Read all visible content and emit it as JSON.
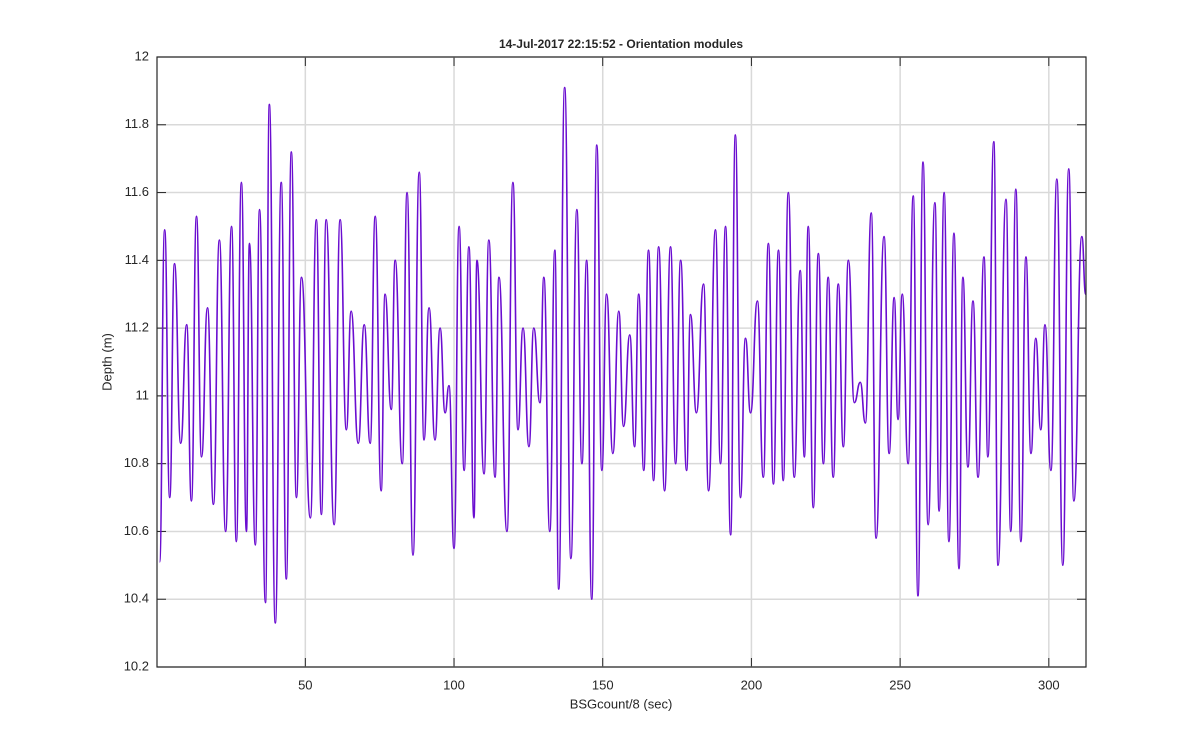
{
  "chart_data": {
    "type": "line",
    "title": "14-Jul-2017 22:15:52 - Orientation modules",
    "x_label": "BSGcount/8 (sec)",
    "y_label": "Depth (m)",
    "xlim": [
      0.125,
      312.5
    ],
    "xticks": [
      50,
      100,
      150,
      200,
      250,
      300
    ],
    "ylim": [
      10.2,
      12
    ],
    "yticks": [
      10.2,
      10.4,
      10.6,
      10.8,
      11,
      11.2,
      11.4,
      11.6,
      11.8,
      12
    ],
    "grid": true,
    "series": [
      {
        "color": "#6a0dd0",
        "x": [
          1.0,
          2.7,
          4.4,
          6.0,
          8.1,
          10.1,
          11.7,
          13.4,
          15.1,
          17.1,
          19.1,
          21.1,
          23.2,
          25.2,
          26.8,
          28.5,
          30.2,
          31.2,
          33.2,
          34.6,
          36.6,
          37.9,
          39.9,
          41.9,
          43.6,
          45.3,
          47.0,
          48.7,
          51.7,
          53.7,
          55.4,
          57.0,
          59.7,
          61.7,
          63.8,
          65.4,
          67.8,
          69.8,
          71.8,
          73.5,
          75.5,
          76.8,
          78.9,
          80.2,
          82.6,
          84.2,
          86.2,
          88.3,
          89.9,
          91.6,
          93.6,
          95.3,
          97.0,
          98.3,
          100.0,
          101.7,
          103.4,
          105.0,
          106.7,
          107.7,
          110.1,
          111.7,
          113.8,
          115.1,
          117.8,
          119.8,
          121.5,
          123.2,
          125.2,
          126.8,
          128.9,
          130.2,
          132.2,
          133.9,
          135.2,
          137.2,
          139.3,
          141.3,
          143.0,
          144.6,
          146.3,
          148.0,
          149.7,
          151.3,
          153.4,
          155.4,
          157.0,
          159.1,
          160.7,
          162.1,
          163.8,
          165.4,
          167.1,
          168.8,
          170.8,
          172.8,
          174.5,
          176.2,
          178.2,
          179.5,
          181.5,
          183.9,
          185.6,
          187.9,
          189.6,
          191.3,
          193.0,
          194.6,
          196.3,
          198.0,
          199.7,
          202.0,
          204.0,
          205.7,
          207.4,
          209.1,
          210.7,
          212.4,
          214.4,
          216.4,
          217.8,
          219.1,
          220.8,
          222.5,
          224.2,
          225.8,
          227.5,
          229.2,
          230.9,
          232.6,
          234.6,
          236.6,
          238.3,
          240.3,
          241.9,
          244.6,
          246.3,
          248.0,
          249.3,
          250.7,
          252.7,
          254.4,
          256.0,
          257.7,
          259.4,
          261.7,
          263.1,
          264.8,
          266.4,
          268.1,
          269.8,
          271.1,
          272.8,
          274.5,
          276.2,
          278.2,
          279.5,
          281.5,
          282.9,
          285.6,
          287.2,
          288.9,
          290.6,
          292.3,
          294.0,
          295.6,
          297.3,
          298.7,
          300.7,
          302.7,
          304.7,
          306.7,
          308.4,
          311.1,
          312.4
        ],
        "values": [
          10.51,
          11.49,
          10.7,
          11.39,
          10.86,
          11.21,
          10.69,
          11.53,
          10.82,
          11.26,
          10.68,
          11.46,
          10.6,
          11.5,
          10.57,
          11.63,
          10.6,
          11.45,
          10.56,
          11.55,
          10.39,
          11.86,
          10.33,
          11.63,
          10.46,
          11.72,
          10.7,
          11.35,
          10.64,
          11.52,
          10.65,
          11.52,
          10.62,
          11.52,
          10.9,
          11.25,
          10.86,
          11.21,
          10.86,
          11.53,
          10.72,
          11.3,
          10.96,
          11.4,
          10.8,
          11.6,
          10.53,
          11.66,
          10.87,
          11.26,
          10.87,
          11.2,
          10.95,
          11.03,
          10.55,
          11.5,
          10.78,
          11.44,
          10.64,
          11.4,
          10.77,
          11.46,
          10.76,
          11.35,
          10.6,
          11.63,
          10.9,
          11.2,
          10.85,
          11.2,
          10.98,
          11.35,
          10.6,
          11.43,
          10.43,
          11.91,
          10.52,
          11.55,
          10.8,
          11.4,
          10.4,
          11.74,
          10.78,
          11.3,
          10.83,
          11.25,
          10.91,
          11.18,
          10.85,
          11.3,
          10.78,
          11.43,
          10.75,
          11.44,
          10.72,
          11.44,
          10.8,
          11.4,
          10.78,
          11.24,
          10.95,
          11.33,
          10.72,
          11.49,
          10.8,
          11.5,
          10.59,
          11.77,
          10.7,
          11.17,
          10.95,
          11.28,
          10.76,
          11.45,
          10.74,
          11.43,
          10.75,
          11.6,
          10.76,
          11.37,
          10.82,
          11.5,
          10.67,
          11.42,
          10.8,
          11.35,
          10.76,
          11.33,
          10.85,
          11.4,
          10.98,
          11.04,
          10.92,
          11.54,
          10.58,
          11.47,
          10.83,
          11.29,
          10.93,
          11.3,
          10.8,
          11.59,
          10.41,
          11.69,
          10.62,
          11.57,
          10.66,
          11.6,
          10.57,
          11.48,
          10.49,
          11.35,
          10.79,
          11.28,
          10.76,
          11.41,
          10.82,
          11.75,
          10.5,
          11.58,
          10.6,
          11.61,
          10.57,
          11.41,
          10.83,
          11.17,
          10.9,
          11.21,
          10.78,
          11.64,
          10.5,
          11.67,
          10.69,
          11.47,
          11.3
        ]
      }
    ]
  }
}
